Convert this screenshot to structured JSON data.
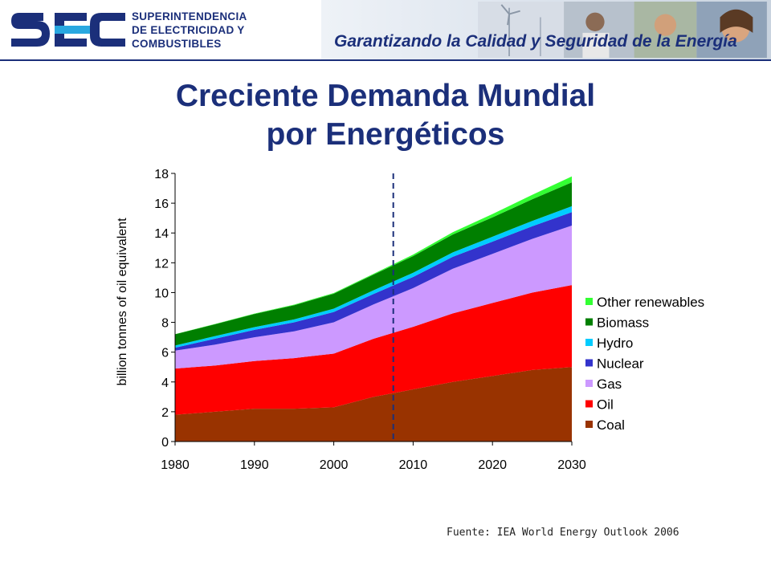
{
  "header": {
    "org_lines": [
      "SUPERINTENDENCIA",
      "DE ELECTRICIDAD Y",
      "COMBUSTIBLES"
    ],
    "tagline": "Garantizando la Calidad y Seguridad de la Energía",
    "logo_text": "SEC",
    "colors": {
      "brand": "#1b2f7a"
    }
  },
  "slide": {
    "title_line1": "Creciente Demanda Mundial",
    "title_line2": "por Energéticos",
    "source": "Fuente: IEA World Energy Outlook 2006"
  },
  "chart_data": {
    "type": "area",
    "stacked": true,
    "title": "",
    "xlabel": "",
    "ylabel": "billion tonnes of oil equivalent",
    "xlim": [
      1980,
      2030
    ],
    "ylim": [
      0,
      18
    ],
    "x_ticks": [
      1980,
      1990,
      2000,
      2010,
      2020,
      2030
    ],
    "y_ticks": [
      0,
      2,
      4,
      6,
      8,
      10,
      12,
      14,
      16,
      18
    ],
    "grid": false,
    "legend_position": "right",
    "projection_marker_x": 2007.5,
    "x": [
      1980,
      1985,
      1990,
      1995,
      2000,
      2005,
      2010,
      2015,
      2020,
      2025,
      2030
    ],
    "series": [
      {
        "name": "Coal",
        "color": "#993300",
        "values": [
          1.8,
          2.0,
          2.2,
          2.2,
          2.3,
          3.0,
          3.5,
          4.0,
          4.4,
          4.8,
          5.0
        ]
      },
      {
        "name": "Oil",
        "color": "#ff0000",
        "values": [
          3.1,
          3.1,
          3.2,
          3.4,
          3.6,
          3.9,
          4.2,
          4.6,
          4.9,
          5.2,
          5.5
        ]
      },
      {
        "name": "Gas",
        "color": "#cc99ff",
        "values": [
          1.2,
          1.4,
          1.6,
          1.8,
          2.1,
          2.3,
          2.6,
          3.0,
          3.3,
          3.6,
          4.0
        ]
      },
      {
        "name": "Nuclear",
        "color": "#3333cc",
        "values": [
          0.2,
          0.4,
          0.5,
          0.6,
          0.7,
          0.7,
          0.75,
          0.8,
          0.82,
          0.85,
          0.9
        ]
      },
      {
        "name": "Hydro",
        "color": "#00ccff",
        "values": [
          0.15,
          0.17,
          0.18,
          0.2,
          0.22,
          0.25,
          0.28,
          0.3,
          0.33,
          0.36,
          0.4
        ]
      },
      {
        "name": "Biomass",
        "color": "#007f00",
        "values": [
          0.75,
          0.8,
          0.88,
          0.95,
          1.0,
          1.05,
          1.12,
          1.2,
          1.3,
          1.45,
          1.6
        ]
      },
      {
        "name": "Other renewables",
        "color": "#33ff33",
        "values": [
          0.01,
          0.02,
          0.03,
          0.04,
          0.05,
          0.06,
          0.1,
          0.15,
          0.22,
          0.3,
          0.4
        ]
      }
    ]
  }
}
